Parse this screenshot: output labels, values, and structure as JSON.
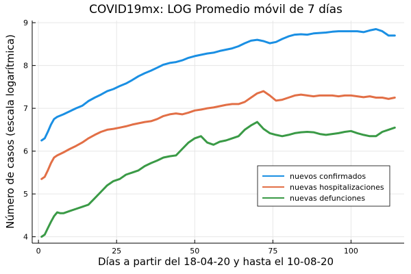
{
  "chart_data": {
    "type": "line",
    "title": "COVID19mx: LOG Promedio móvil de 7 días",
    "xlabel": "Días a partir del 18-04-20 y hasta el 10-08-20",
    "ylabel": "Número de casos (escala logarítmica)",
    "xlim": [
      -2,
      117
    ],
    "ylim": [
      3.85,
      9.05
    ],
    "xticks": [
      0,
      25,
      50,
      75,
      100
    ],
    "yticks": [
      4,
      5,
      6,
      7,
      8,
      9
    ],
    "grid": true,
    "legend_position": "lower-right",
    "series": [
      {
        "name": "nuevos confirmados",
        "color": "#1a8fe3",
        "x": [
          1,
          2,
          3,
          4,
          5,
          6,
          8,
          10,
          12,
          14,
          16,
          18,
          20,
          22,
          24,
          26,
          28,
          30,
          32,
          34,
          36,
          38,
          40,
          42,
          44,
          46,
          48,
          50,
          52,
          54,
          56,
          58,
          60,
          62,
          64,
          66,
          68,
          70,
          72,
          74,
          76,
          78,
          80,
          82,
          84,
          86,
          88,
          90,
          92,
          94,
          96,
          98,
          100,
          102,
          104,
          106,
          108,
          110,
          112,
          114
        ],
        "values": [
          6.25,
          6.3,
          6.45,
          6.62,
          6.75,
          6.8,
          6.86,
          6.93,
          7.0,
          7.06,
          7.17,
          7.25,
          7.32,
          7.4,
          7.45,
          7.52,
          7.58,
          7.66,
          7.75,
          7.82,
          7.88,
          7.95,
          8.02,
          8.06,
          8.08,
          8.12,
          8.18,
          8.22,
          8.25,
          8.28,
          8.3,
          8.34,
          8.37,
          8.4,
          8.45,
          8.52,
          8.58,
          8.6,
          8.57,
          8.52,
          8.55,
          8.62,
          8.68,
          8.72,
          8.73,
          8.72,
          8.75,
          8.76,
          8.77,
          8.79,
          8.8,
          8.8,
          8.8,
          8.8,
          8.78,
          8.82,
          8.85,
          8.8,
          8.7,
          8.7
        ]
      },
      {
        "name": "nuevas hospitalizaciones",
        "color": "#e26f46",
        "x": [
          1,
          2,
          3,
          4,
          5,
          6,
          8,
          10,
          12,
          14,
          16,
          18,
          20,
          22,
          24,
          26,
          28,
          30,
          32,
          34,
          36,
          38,
          40,
          42,
          44,
          46,
          48,
          50,
          52,
          54,
          56,
          58,
          60,
          62,
          64,
          66,
          68,
          70,
          72,
          74,
          76,
          78,
          80,
          82,
          84,
          86,
          88,
          90,
          92,
          94,
          96,
          98,
          100,
          102,
          104,
          106,
          108,
          110,
          112,
          114
        ],
        "values": [
          5.35,
          5.4,
          5.55,
          5.72,
          5.85,
          5.9,
          5.97,
          6.05,
          6.12,
          6.2,
          6.3,
          6.38,
          6.45,
          6.5,
          6.52,
          6.55,
          6.58,
          6.62,
          6.65,
          6.68,
          6.7,
          6.75,
          6.82,
          6.86,
          6.88,
          6.86,
          6.9,
          6.95,
          6.97,
          7.0,
          7.02,
          7.05,
          7.08,
          7.1,
          7.1,
          7.15,
          7.25,
          7.35,
          7.4,
          7.3,
          7.18,
          7.2,
          7.25,
          7.3,
          7.32,
          7.3,
          7.28,
          7.3,
          7.3,
          7.3,
          7.28,
          7.3,
          7.3,
          7.28,
          7.26,
          7.28,
          7.25,
          7.25,
          7.22,
          7.25
        ]
      },
      {
        "name": "nuevas defunciones",
        "color": "#3a9a46",
        "x": [
          1,
          2,
          3,
          4,
          5,
          6,
          7,
          8,
          10,
          12,
          14,
          16,
          18,
          20,
          22,
          24,
          26,
          28,
          30,
          32,
          34,
          36,
          38,
          40,
          42,
          44,
          46,
          48,
          50,
          52,
          54,
          56,
          58,
          60,
          62,
          64,
          66,
          68,
          70,
          72,
          74,
          76,
          78,
          80,
          82,
          84,
          86,
          88,
          90,
          92,
          94,
          96,
          98,
          100,
          102,
          104,
          106,
          108,
          110,
          112,
          114
        ],
        "values": [
          4.0,
          4.05,
          4.2,
          4.35,
          4.48,
          4.57,
          4.55,
          4.55,
          4.6,
          4.65,
          4.7,
          4.75,
          4.9,
          5.05,
          5.2,
          5.3,
          5.35,
          5.45,
          5.5,
          5.55,
          5.65,
          5.72,
          5.78,
          5.85,
          5.88,
          5.9,
          6.05,
          6.2,
          6.3,
          6.35,
          6.2,
          6.15,
          6.22,
          6.25,
          6.3,
          6.35,
          6.5,
          6.6,
          6.68,
          6.52,
          6.42,
          6.38,
          6.35,
          6.38,
          6.42,
          6.44,
          6.45,
          6.44,
          6.4,
          6.38,
          6.4,
          6.42,
          6.45,
          6.47,
          6.42,
          6.38,
          6.35,
          6.35,
          6.45,
          6.5,
          6.55
        ]
      }
    ]
  }
}
